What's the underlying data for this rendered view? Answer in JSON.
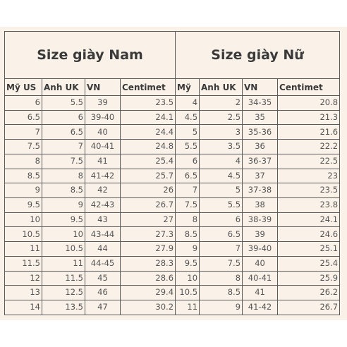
{
  "titles": {
    "men": "Size giày Nam",
    "women": "Size giày Nữ"
  },
  "headers": {
    "men": [
      "Mỹ US",
      "Anh UK",
      "VN",
      "Centimet"
    ],
    "women": [
      "Mỹ",
      "Anh UK",
      "VN",
      "Centimet"
    ]
  },
  "men": [
    [
      "6",
      "5.5",
      "39",
      "23.5"
    ],
    [
      "6.5",
      "6",
      "39-40",
      "24.1"
    ],
    [
      "7",
      "6.5",
      "40",
      "24.4"
    ],
    [
      "7.5",
      "7",
      "40-41",
      "24.8"
    ],
    [
      "8",
      "7.5",
      "41",
      "25.4"
    ],
    [
      "8.5",
      "8",
      "41-42",
      "25.7"
    ],
    [
      "9",
      "8.5",
      "42",
      "26"
    ],
    [
      "9.5",
      "9",
      "42-43",
      "26.7"
    ],
    [
      "10",
      "9.5",
      "43",
      "27"
    ],
    [
      "10.5",
      "10",
      "43-44",
      "27.3"
    ],
    [
      "11",
      "10.5",
      "44",
      "27.9"
    ],
    [
      "11.5",
      "11",
      "44-45",
      "28.3"
    ],
    [
      "12",
      "11.5",
      "45",
      "28.6"
    ],
    [
      "13",
      "12.5",
      "46",
      "29.4"
    ],
    [
      "14",
      "13.5",
      "47",
      "30.2"
    ]
  ],
  "women": [
    [
      "4",
      "2",
      "34-35",
      "20.8"
    ],
    [
      "4.5",
      "2.5",
      "35",
      "21.3"
    ],
    [
      "5",
      "3",
      "35-36",
      "21.6"
    ],
    [
      "5.5",
      "3.5",
      "36",
      "22.2"
    ],
    [
      "6",
      "4",
      "36-37",
      "22.5"
    ],
    [
      "6.5",
      "4.5",
      "37",
      "23"
    ],
    [
      "7",
      "5",
      "37-38",
      "23.5"
    ],
    [
      "7.5",
      "5.5",
      "38",
      "23.8"
    ],
    [
      "8",
      "6",
      "38-39",
      "24.1"
    ],
    [
      "8.5",
      "6.5",
      "39",
      "24.6"
    ],
    [
      "9",
      "7",
      "39-40",
      "25.1"
    ],
    [
      "9.5",
      "7.5",
      "40",
      "25.4"
    ],
    [
      "10",
      "8",
      "40-41",
      "25.9"
    ],
    [
      "10.5",
      "8.5",
      "41",
      "26.2"
    ],
    [
      "11",
      "9",
      "41-42",
      "26.7"
    ]
  ]
}
